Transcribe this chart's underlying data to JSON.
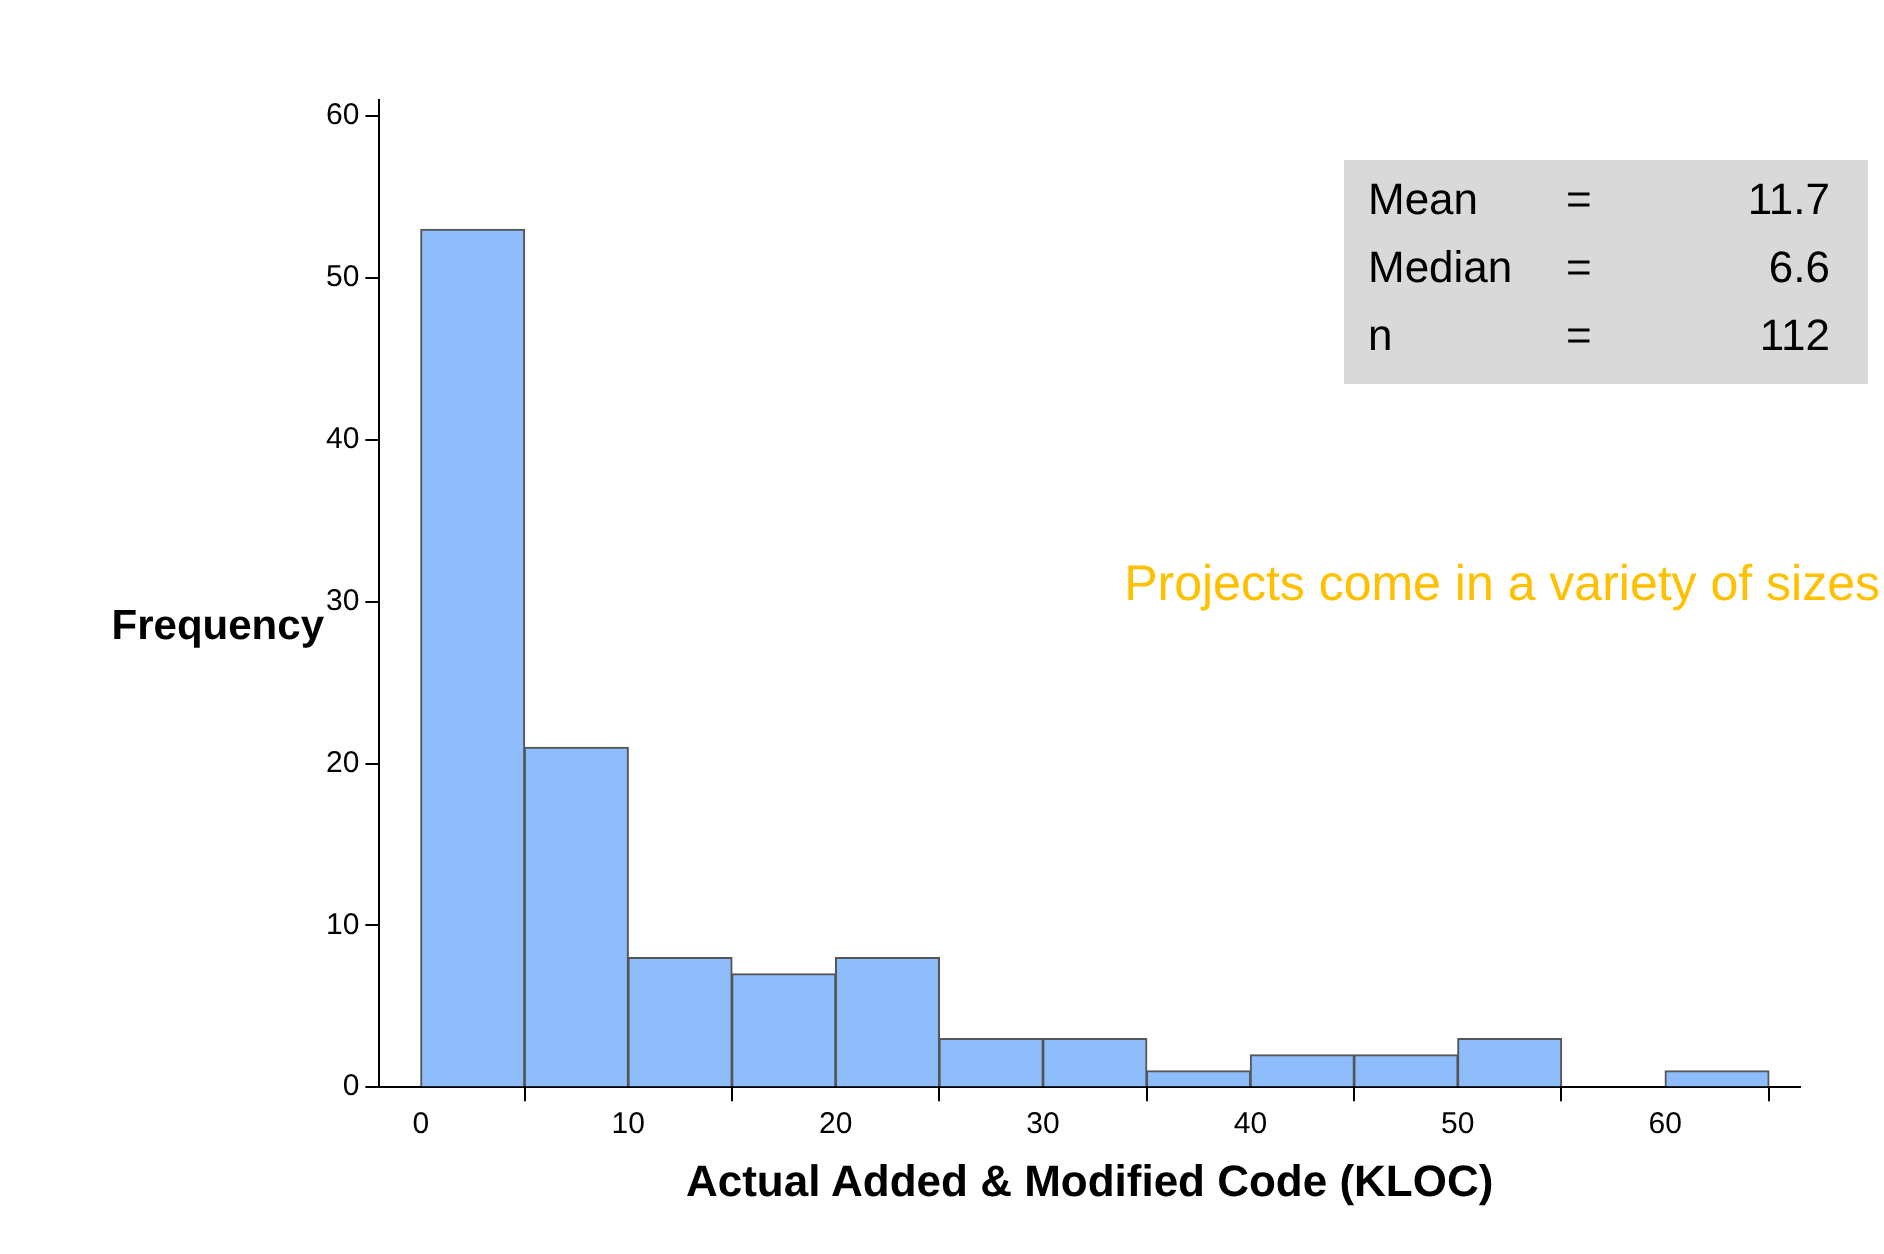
{
  "chart_data": {
    "type": "histogram",
    "xlabel": "Actual Added & Modified Code (KLOC)",
    "ylabel": "Frequency",
    "bins": [
      0,
      5,
      10,
      15,
      20,
      25,
      30,
      35,
      40,
      45,
      50,
      55,
      60,
      65
    ],
    "values": [
      53,
      21,
      8,
      7,
      8,
      3,
      3,
      1,
      2,
      2,
      3,
      0,
      1
    ],
    "color": "#8fbdfc",
    "xlim": [
      -2,
      66.5
    ],
    "xticks": [
      0,
      10,
      20,
      30,
      40,
      50,
      60
    ],
    "ylim": [
      0,
      61
    ],
    "yticks": [
      0,
      10,
      20,
      30,
      40,
      50,
      60
    ],
    "grid": false,
    "legend": false,
    "annotations": [
      "Mean = 11.7",
      "Median = 6.6",
      "n = 112",
      "Projects come in a variety of sizes"
    ]
  }
}
